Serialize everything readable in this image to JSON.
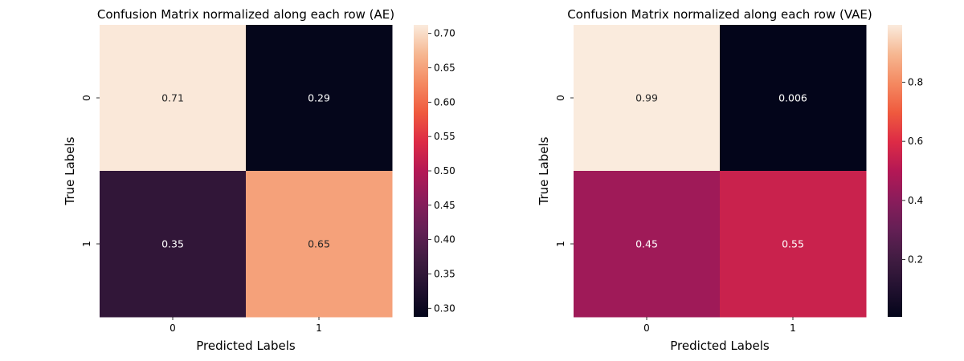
{
  "chart_data": [
    {
      "type": "heatmap",
      "title": "Confusion Matrix normalized along each row (AE)",
      "xlabel": "Predicted Labels",
      "ylabel": "True Labels",
      "x_categories": [
        "0",
        "1"
      ],
      "y_categories": [
        "0",
        "1"
      ],
      "values": [
        [
          0.71,
          0.29
        ],
        [
          0.35,
          0.65
        ]
      ],
      "cell_labels": [
        [
          "0.71",
          "0.29"
        ],
        [
          "0.35",
          "0.65"
        ]
      ],
      "colorbar": {
        "range": [
          0.2875,
          0.7125
        ],
        "ticks": [
          0.3,
          0.35,
          0.4,
          0.45,
          0.5,
          0.55,
          0.6,
          0.65,
          0.7
        ],
        "tick_labels": [
          "0.30",
          "0.35",
          "0.40",
          "0.45",
          "0.50",
          "0.55",
          "0.60",
          "0.65",
          "0.70"
        ]
      },
      "colormap": "rocket"
    },
    {
      "type": "heatmap",
      "title": "Confusion Matrix normalized along each row (VAE)",
      "xlabel": "Predicted Labels",
      "ylabel": "True Labels",
      "x_categories": [
        "0",
        "1"
      ],
      "y_categories": [
        "0",
        "1"
      ],
      "values": [
        [
          0.994,
          0.006
        ],
        [
          0.45,
          0.55
        ]
      ],
      "cell_labels": [
        [
          "0.99",
          "0.006"
        ],
        [
          "0.45",
          "0.55"
        ]
      ],
      "colorbar": {
        "range": [
          0.006,
          0.994
        ],
        "ticks": [
          0.2,
          0.4,
          0.6,
          0.8
        ],
        "tick_labels": [
          "0.2",
          "0.4",
          "0.6",
          "0.8"
        ]
      },
      "colormap": "rocket"
    }
  ]
}
